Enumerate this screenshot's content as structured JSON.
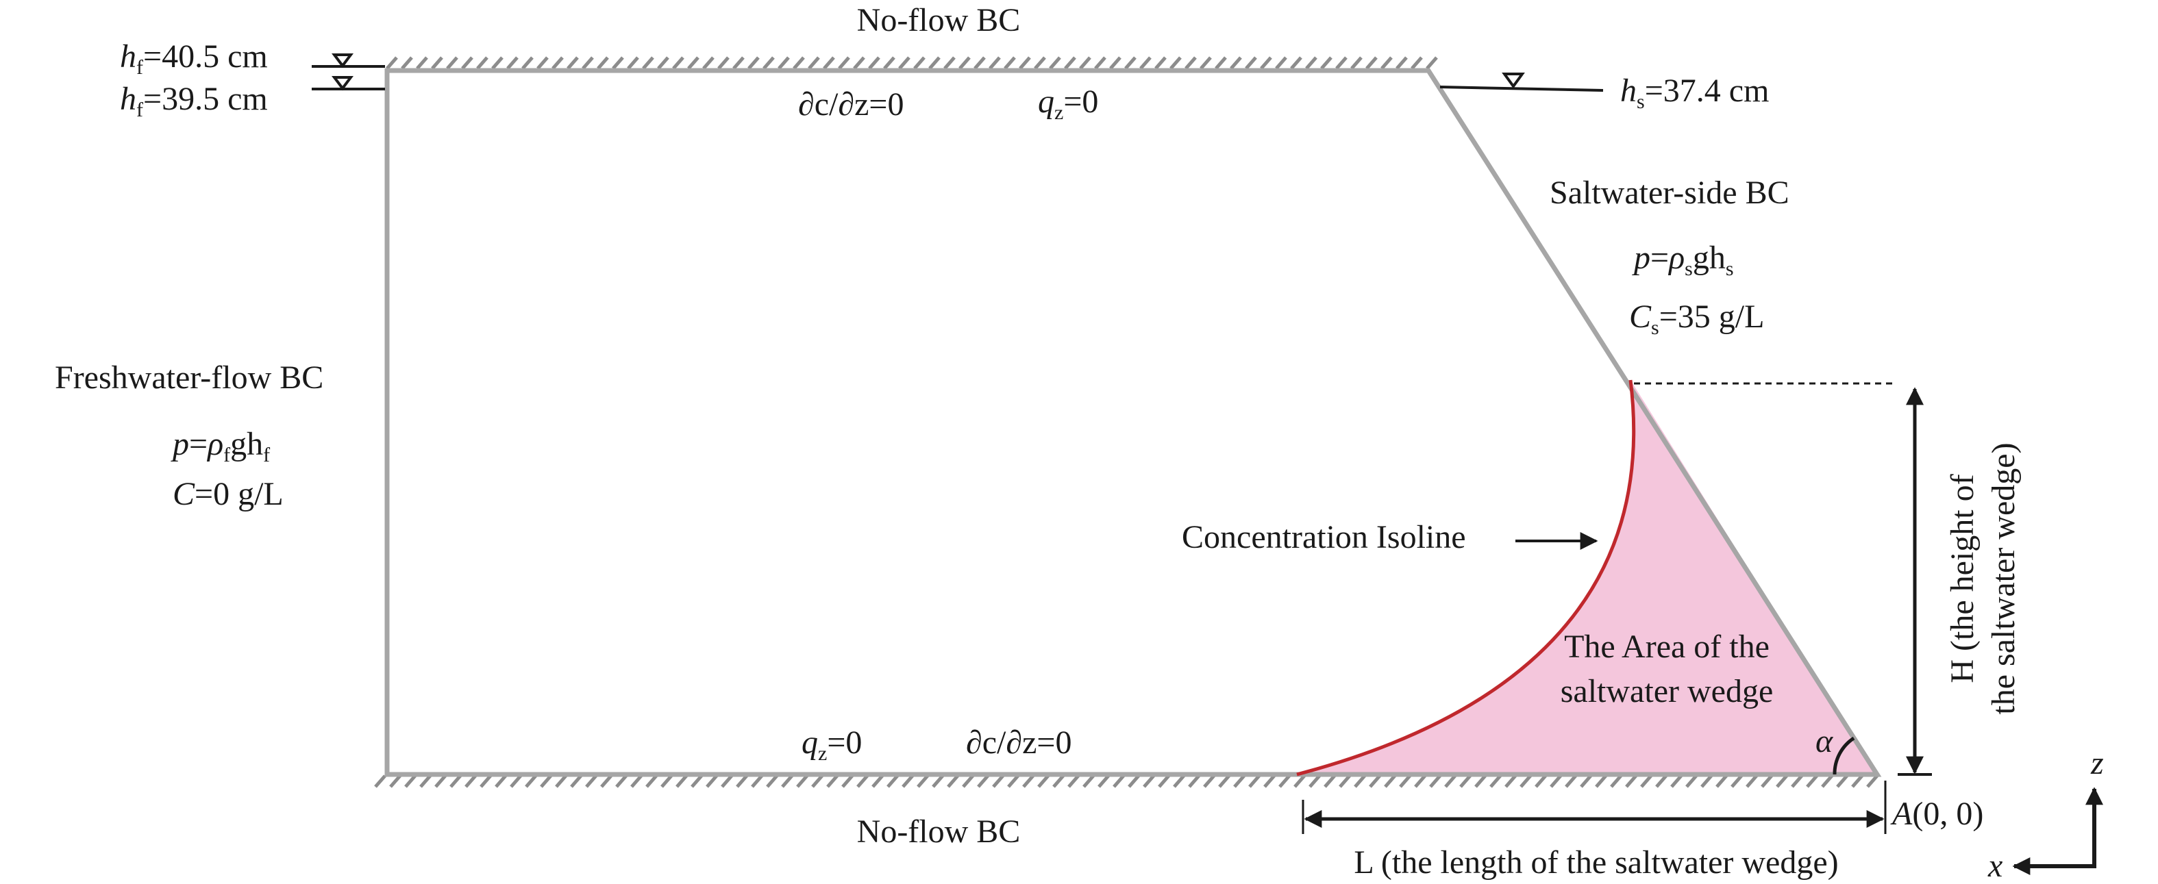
{
  "boundaries": {
    "top": "No-flow BC",
    "bottom": "No-flow BC",
    "left_title": "Freshwater-flow BC",
    "right_title": "Saltwater-side BC"
  },
  "freshwater_heads": {
    "high": {
      "var": "h",
      "sub": "f",
      "value": "=40.5 cm"
    },
    "low": {
      "var": "h",
      "sub": "f",
      "value": "=39.5 cm"
    }
  },
  "saltwater_head": {
    "var": "h",
    "sub": "s",
    "value": "=37.4 cm"
  },
  "top_conditions": {
    "dc": "∂c/∂z=0",
    "q": "q",
    "q_sub": "z",
    "q_val": "=0"
  },
  "bottom_conditions": {
    "dc": "∂c/∂z=0",
    "q": "q",
    "q_sub": "z",
    "q_val": "=0"
  },
  "left_conditions": {
    "pressure": {
      "p": "p",
      "eq": "=",
      "rho": "ρ",
      "rho_sub": "f",
      "g": "gh",
      "h_sub": "f"
    },
    "concentration": {
      "c": "C",
      "value": "=0 g/L"
    }
  },
  "right_conditions": {
    "pressure": {
      "p": "p",
      "eq": "=",
      "rho": "ρ",
      "rho_sub": "s",
      "g": "gh",
      "h_sub": "s"
    },
    "concentration": {
      "c": "C",
      "sub": "s",
      "value": "=35 g/L"
    }
  },
  "isoline_label": "Concentration Isoline",
  "wedge_label_line1": "The Area of the",
  "wedge_label_line2": "saltwater wedge",
  "angle_label": "α",
  "height_label_line1": "H (the height of",
  "height_label_line2": "the saltwater wedge)",
  "length_label": "L (the length of the saltwater wedge)",
  "origin_label": {
    "point": "A",
    "coords": "(0, 0)"
  },
  "axes": {
    "z": "z",
    "x": "x"
  },
  "colors": {
    "boundary": "#a6a6a6",
    "hatch": "#8c8c8c",
    "isoline": "#c0282d",
    "wedge_fill": "#f4c6dc",
    "ink": "#1a1a1a"
  }
}
